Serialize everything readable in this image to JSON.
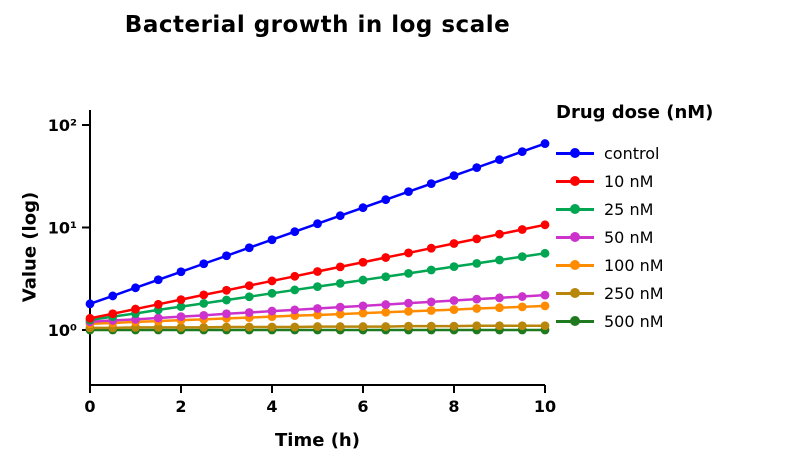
{
  "page": {
    "background": "#ffffff"
  },
  "chart_data": {
    "type": "line",
    "title": "Bacterial growth in log scale",
    "xlabel": "Time (h)",
    "ylabel": "Value (log)",
    "y_scale": "log10",
    "xlim": [
      0,
      10
    ],
    "ylim": [
      0.3,
      140
    ],
    "grid": false,
    "marker": "circle",
    "x_ticks": {
      "values": [
        0,
        2,
        4,
        6,
        8,
        10
      ],
      "labels": [
        "0",
        "2",
        "4",
        "6",
        "8",
        "10"
      ]
    },
    "y_ticks": {
      "values": [
        100,
        10,
        1
      ],
      "labels": [
        "10²",
        "10¹",
        "10⁰"
      ]
    },
    "legend": {
      "position": "right",
      "title": "Drug dose (nM)"
    },
    "x": [
      0,
      0.5,
      1,
      1.5,
      2,
      2.5,
      3,
      3.5,
      4,
      4.5,
      5,
      5.5,
      6,
      6.5,
      7,
      7.5,
      8,
      8.5,
      9,
      9.5,
      10
    ],
    "series": [
      {
        "name": "control",
        "color": "#0000ff",
        "values": [
          1.8,
          2.15,
          2.58,
          3.09,
          3.7,
          4.43,
          5.3,
          6.35,
          7.6,
          9.1,
          10.89,
          13.04,
          15.61,
          18.68,
          22.37,
          26.78,
          32.06,
          38.39,
          45.95,
          55.02,
          65.88
        ]
      },
      {
        "name": "10 nM",
        "color": "#ff0000",
        "values": [
          1.3,
          1.44,
          1.6,
          1.78,
          1.98,
          2.2,
          2.44,
          2.71,
          3.01,
          3.34,
          3.72,
          4.13,
          4.58,
          5.09,
          5.65,
          6.28,
          6.98,
          7.75,
          8.61,
          9.56,
          10.62
        ]
      },
      {
        "name": "25 nM",
        "color": "#00a651",
        "values": [
          1.25,
          1.35,
          1.45,
          1.57,
          1.69,
          1.82,
          1.96,
          2.11,
          2.28,
          2.46,
          2.65,
          2.85,
          3.07,
          3.31,
          3.57,
          3.85,
          4.15,
          4.47,
          4.82,
          5.2,
          5.6
        ]
      },
      {
        "name": "50 nM",
        "color": "#cc33cc",
        "values": [
          1.2,
          1.24,
          1.27,
          1.31,
          1.35,
          1.39,
          1.44,
          1.48,
          1.53,
          1.57,
          1.62,
          1.67,
          1.72,
          1.77,
          1.83,
          1.88,
          1.94,
          2.0,
          2.06,
          2.12,
          2.19
        ]
      },
      {
        "name": "100 nM",
        "color": "#ff8c00",
        "values": [
          1.15,
          1.17,
          1.2,
          1.22,
          1.25,
          1.27,
          1.3,
          1.32,
          1.35,
          1.38,
          1.4,
          1.43,
          1.46,
          1.49,
          1.52,
          1.55,
          1.58,
          1.62,
          1.65,
          1.68,
          1.72
        ]
      },
      {
        "name": "250 nM",
        "color": "#b8860b",
        "values": [
          1.05,
          1.05,
          1.06,
          1.06,
          1.06,
          1.06,
          1.07,
          1.07,
          1.07,
          1.07,
          1.08,
          1.08,
          1.08,
          1.08,
          1.09,
          1.09,
          1.09,
          1.1,
          1.1,
          1.1,
          1.1
        ]
      },
      {
        "name": "500 nM",
        "color": "#1f7a1f",
        "values": [
          1.0,
          1.0,
          1.0,
          1.0,
          1.0,
          1.0,
          1.0,
          1.0,
          1.0,
          1.0,
          1.0,
          1.0,
          1.0,
          1.0,
          1.0,
          1.0,
          1.0,
          1.0,
          1.0,
          1.0,
          1.0
        ]
      }
    ]
  }
}
